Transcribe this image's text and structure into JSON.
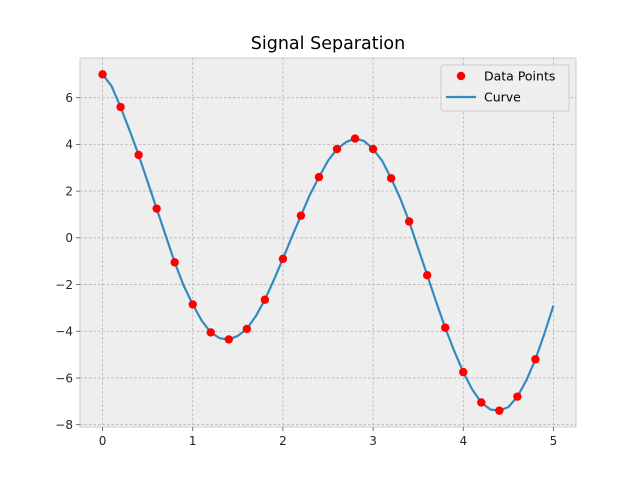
{
  "chart_data": {
    "type": "line",
    "title": "Signal Separation",
    "xlabel": "",
    "ylabel": "",
    "xlim": [
      -0.25,
      5.25
    ],
    "ylim": [
      -8.1,
      7.7
    ],
    "grid": true,
    "legend_position": "top-right",
    "x_ticks": [
      0,
      1,
      2,
      3,
      4,
      5
    ],
    "x_tick_labels": [
      "0",
      "1",
      "2",
      "3",
      "4",
      "5"
    ],
    "y_ticks": [
      -8,
      -6,
      -4,
      -2,
      0,
      2,
      4,
      6
    ],
    "y_tick_labels": [
      "−8",
      "−6",
      "−4",
      "−2",
      "0",
      "2",
      "4",
      "6"
    ],
    "series": [
      {
        "name": "Data Points",
        "kind": "scatter",
        "color": "#ff0000",
        "x": [
          0,
          0.2,
          0.4,
          0.6,
          0.8,
          1.0,
          1.2,
          1.4,
          1.6,
          1.8,
          2.0,
          2.2,
          2.4,
          2.6,
          2.8,
          3.0,
          3.2,
          3.4,
          3.6,
          3.8,
          4.0,
          4.2,
          4.4,
          4.6,
          4.8
        ],
        "y": [
          7.0,
          5.6,
          3.55,
          1.25,
          -1.05,
          -2.85,
          -4.05,
          -4.35,
          -3.9,
          -2.65,
          -0.9,
          0.95,
          2.6,
          3.8,
          4.25,
          3.8,
          2.55,
          0.7,
          -1.6,
          -3.85,
          -5.75,
          -7.05,
          -7.4,
          -6.8,
          -5.2
        ]
      },
      {
        "name": "Curve",
        "kind": "line",
        "color": "#348abd",
        "x": [
          0,
          0.1,
          0.2,
          0.3,
          0.4,
          0.5,
          0.6,
          0.7,
          0.8,
          0.9,
          1.0,
          1.1,
          1.2,
          1.3,
          1.4,
          1.5,
          1.6,
          1.7,
          1.8,
          1.9,
          2.0,
          2.1,
          2.2,
          2.3,
          2.4,
          2.5,
          2.6,
          2.7,
          2.8,
          2.9,
          3.0,
          3.1,
          3.2,
          3.3,
          3.4,
          3.5,
          3.6,
          3.7,
          3.8,
          3.9,
          4.0,
          4.1,
          4.2,
          4.3,
          4.4,
          4.5,
          4.6,
          4.7,
          4.8,
          4.9,
          5.0
        ],
        "y": [
          7.0,
          6.5,
          5.6,
          4.6,
          3.55,
          2.4,
          1.25,
          0.1,
          -1.05,
          -2.05,
          -2.85,
          -3.55,
          -4.05,
          -4.3,
          -4.35,
          -4.2,
          -3.9,
          -3.35,
          -2.65,
          -1.8,
          -0.9,
          0.05,
          0.95,
          1.85,
          2.6,
          3.3,
          3.8,
          4.1,
          4.25,
          4.15,
          3.8,
          3.3,
          2.55,
          1.7,
          0.7,
          -0.45,
          -1.6,
          -2.75,
          -3.85,
          -4.85,
          -5.75,
          -6.5,
          -7.05,
          -7.35,
          -7.4,
          -7.25,
          -6.8,
          -6.1,
          -5.2,
          -4.1,
          -2.9
        ]
      }
    ]
  }
}
